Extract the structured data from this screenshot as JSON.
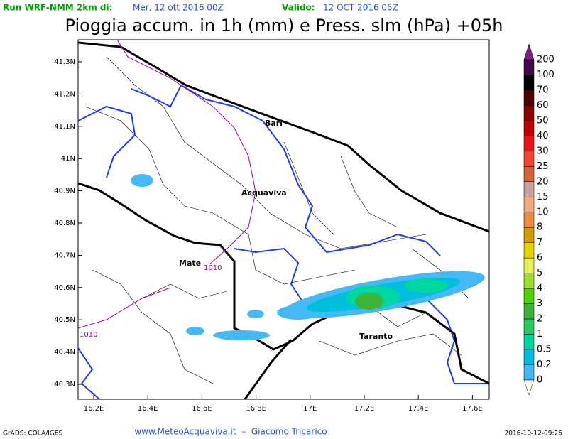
{
  "header": {
    "run_label": "Run WRF-NMM 2km di:",
    "run_date": "Mer, 12 ott 2016 00Z",
    "valid_label": "Valido:",
    "valid_date": "12 OCT 2016 05Z"
  },
  "title": "Pioggia accum. in 1h (mm) e Press. slm (hPa) +05h",
  "lat_ticks": [
    "41.3N",
    "41.2N",
    "41.1N",
    "41N",
    "40.9N",
    "40.8N",
    "40.7N",
    "40.6N",
    "40.5N",
    "40.4N",
    "40.3N"
  ],
  "lon_ticks": [
    "16.2E",
    "16.4E",
    "16.6E",
    "16.8E",
    "17E",
    "17.2E",
    "17.4E",
    "17.6E"
  ],
  "places": [
    "Bari",
    "Acquaviva",
    "Mate",
    "Taranto"
  ],
  "isobars": [
    "1010",
    "1010"
  ],
  "colorbar": {
    "labels": [
      "200",
      "100",
      "70",
      "60",
      "50",
      "40",
      "30",
      "25",
      "20",
      "15",
      "10",
      "8",
      "7",
      "6",
      "5",
      "4",
      "3",
      "2",
      "1",
      "0.5",
      "0.2",
      "0"
    ],
    "colors": [
      "#3c0a46",
      "#000000",
      "#500000",
      "#8c0000",
      "#be0000",
      "#e61414",
      "#f0462d",
      "#d2643c",
      "#c8a0a0",
      "#f0aa7d",
      "#f08c3c",
      "#d29b00",
      "#e1d200",
      "#e6f050",
      "#a0dc32",
      "#50d200",
      "#3cb43c",
      "#28c864",
      "#00d7a0",
      "#00bedc",
      "#46b9f5"
    ]
  },
  "footer": {
    "left": "GrADS: COLA/IGES",
    "center": "www.MeteoAcquaviva.it  –  Giacomo Tricarico",
    "right": "2016-10-12-09:26"
  }
}
